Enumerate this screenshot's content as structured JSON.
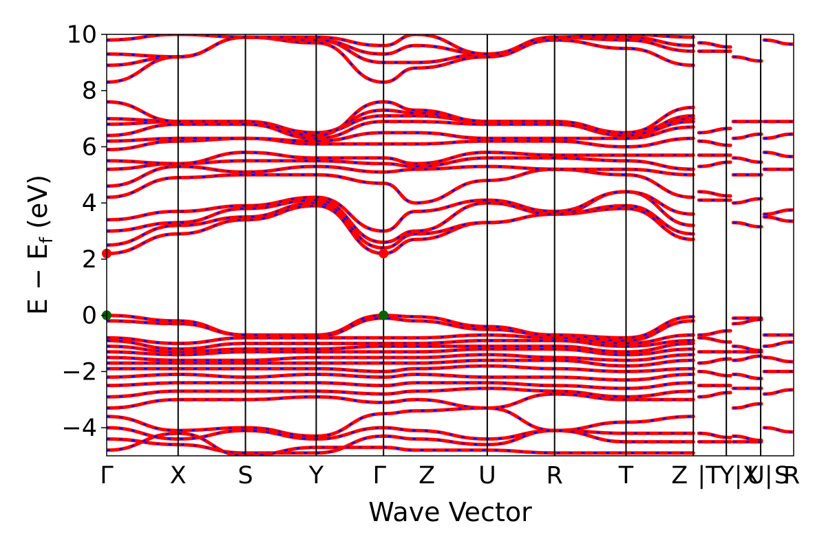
{
  "chart_data": {
    "type": "line",
    "title": "",
    "xlabel": "Wave Vector",
    "ylabel": "E − E_f (eV)",
    "ylabel_parts": {
      "main": "E − E",
      "sub": "f",
      "unit": " (eV)"
    },
    "ylim": [
      -5,
      10
    ],
    "yticks": [
      -4,
      -2,
      0,
      2,
      4,
      6,
      8,
      10
    ],
    "ytick_labels": [
      "−4",
      "−2",
      "0",
      "2",
      "4",
      "6",
      "8",
      "10"
    ],
    "xlim": [
      0,
      10
    ],
    "kpoints": [
      {
        "label": "Γ",
        "x": 0.0
      },
      {
        "label": "X",
        "x": 1.04
      },
      {
        "label": "S",
        "x": 2.02
      },
      {
        "label": "Y",
        "x": 3.05
      },
      {
        "label": "Γ",
        "x": 4.03
      },
      {
        "label": "Z",
        "x": 4.5
      },
      {
        "label": "U",
        "x": 5.54
      },
      {
        "label": "R",
        "x": 6.52
      },
      {
        "label": "T",
        "x": 7.56
      },
      {
        "label": "Z",
        "x": 8.54
      },
      {
        "label": "|T",
        "x": 8.6
      },
      {
        "label": "Y|X",
        "x": 9.1
      },
      {
        "label": "U|",
        "x": 9.55
      },
      {
        "label": "S",
        "x": 9.85
      },
      {
        "label": "R",
        "x": 10.0
      }
    ],
    "grid": false,
    "legend": "none",
    "colors": {
      "band_main": "#ff0000",
      "band_dash": "#0000ff",
      "vbm": "#006400",
      "cbm": "#ff0000"
    },
    "markers": [
      {
        "type": "VBM",
        "x": 0.0,
        "y": 0.0
      },
      {
        "type": "VBM",
        "x": 4.03,
        "y": 0.0
      },
      {
        "type": "CBM",
        "x": 0.0,
        "y": 2.2
      },
      {
        "type": "CBM",
        "x": 4.03,
        "y": 2.2
      }
    ],
    "conduction_bands": [
      [
        2.2,
        2.9,
        3.4,
        3.9,
        2.2,
        2.7,
        3.3,
        3.6,
        3.8,
        2.7
      ],
      [
        2.5,
        3.2,
        3.5,
        4.0,
        2.4,
        2.9,
        3.3,
        3.6,
        3.9,
        2.9
      ],
      [
        3.0,
        3.3,
        3.8,
        4.1,
        2.6,
        3.0,
        4.0,
        3.6,
        4.4,
        3.2
      ],
      [
        3.4,
        3.7,
        3.9,
        4.2,
        3.0,
        3.7,
        4.1,
        3.7,
        4.4,
        3.6
      ],
      [
        4.2,
        4.9,
        5.0,
        5.0,
        4.7,
        4.0,
        4.8,
        5.2,
        5.0,
        4.2
      ],
      [
        4.6,
        5.3,
        5.1,
        5.3,
        5.1,
        5.2,
        5.3,
        5.2,
        5.2,
        5.0
      ],
      [
        5.2,
        5.4,
        5.5,
        5.5,
        5.4,
        5.3,
        5.6,
        5.6,
        5.5,
        5.2
      ],
      [
        5.5,
        5.4,
        5.8,
        5.6,
        5.6,
        5.4,
        5.8,
        5.7,
        5.7,
        5.7
      ],
      [
        5.9,
        6.2,
        6.3,
        6.1,
        6.1,
        6.1,
        6.2,
        6.2,
        6.0,
        6.3
      ],
      [
        6.2,
        6.3,
        6.3,
        6.2,
        6.5,
        6.5,
        6.3,
        6.3,
        6.3,
        6.7
      ],
      [
        6.4,
        6.8,
        6.8,
        6.3,
        6.9,
        6.9,
        6.8,
        6.8,
        6.4,
        6.9
      ],
      [
        6.8,
        6.9,
        6.9,
        6.5,
        7.1,
        7.1,
        6.9,
        6.9,
        6.5,
        7.0
      ],
      [
        7.0,
        6.9,
        6.9,
        6.5,
        7.3,
        7.2,
        6.9,
        6.9,
        6.4,
        7.1
      ],
      [
        7.6,
        6.9,
        6.9,
        6.4,
        7.6,
        7.3,
        6.9,
        6.9,
        6.5,
        7.4
      ],
      [
        8.3,
        9.2,
        9.9,
        9.7,
        8.3,
        8.8,
        9.2,
        9.8,
        9.5,
        8.9
      ],
      [
        8.9,
        9.2,
        9.9,
        9.8,
        9.0,
        9.0,
        9.3,
        9.9,
        9.8,
        9.4
      ],
      [
        9.3,
        9.2,
        9.9,
        9.8,
        9.3,
        9.6,
        9.3,
        9.9,
        9.9,
        9.6
      ],
      [
        9.8,
        10.0,
        9.9,
        9.9,
        9.6,
        10.0,
        9.3,
        9.9,
        10.0,
        9.9
      ]
    ],
    "valence_bands": [
      [
        0.0,
        -0.2,
        -0.7,
        -0.7,
        0.0,
        -0.05,
        -0.4,
        -0.7,
        -0.8,
        -0.05
      ],
      [
        -0.2,
        -0.3,
        -0.7,
        -0.75,
        -0.1,
        -0.2,
        -0.5,
        -0.7,
        -0.9,
        -0.2
      ],
      [
        -0.8,
        -1.0,
        -0.8,
        -0.8,
        -0.8,
        -0.8,
        -0.7,
        -0.8,
        -1.0,
        -0.7
      ],
      [
        -0.9,
        -1.2,
        -1.0,
        -1.0,
        -1.0,
        -1.0,
        -0.9,
        -0.9,
        -1.1,
        -0.9
      ],
      [
        -1.1,
        -1.3,
        -1.2,
        -1.2,
        -1.1,
        -1.1,
        -1.1,
        -1.1,
        -1.3,
        -1.0
      ],
      [
        -1.3,
        -1.4,
        -1.3,
        -1.3,
        -1.3,
        -1.3,
        -1.2,
        -1.2,
        -1.4,
        -1.2
      ],
      [
        -1.5,
        -1.6,
        -1.6,
        -1.5,
        -1.5,
        -1.5,
        -1.4,
        -1.5,
        -1.6,
        -1.4
      ],
      [
        -1.7,
        -1.7,
        -1.7,
        -1.7,
        -1.7,
        -1.7,
        -1.6,
        -1.6,
        -1.8,
        -1.6
      ],
      [
        -1.9,
        -1.9,
        -1.9,
        -1.9,
        -2.0,
        -1.9,
        -1.8,
        -1.9,
        -2.0,
        -1.9
      ],
      [
        -2.2,
        -2.1,
        -2.2,
        -2.1,
        -2.2,
        -2.1,
        -2.2,
        -2.2,
        -2.3,
        -2.1
      ],
      [
        -2.5,
        -2.4,
        -2.4,
        -2.4,
        -2.5,
        -2.4,
        -2.4,
        -2.5,
        -2.6,
        -2.4
      ],
      [
        -2.9,
        -2.7,
        -2.7,
        -2.7,
        -2.8,
        -2.7,
        -2.6,
        -2.7,
        -2.9,
        -2.7
      ],
      [
        -3.3,
        -3.0,
        -3.0,
        -2.9,
        -3.1,
        -3.0,
        -3.3,
        -2.8,
        -3.0,
        -3.0
      ],
      [
        -3.6,
        -4.1,
        -4.0,
        -4.3,
        -3.5,
        -3.4,
        -3.3,
        -4.1,
        -3.8,
        -3.6
      ],
      [
        -4.0,
        -4.4,
        -4.1,
        -4.4,
        -4.0,
        -4.1,
        -4.4,
        -4.1,
        -4.2,
        -4.2
      ],
      [
        -4.4,
        -4.6,
        -4.9,
        -4.9,
        -4.3,
        -4.4,
        -4.6,
        -4.1,
        -4.5,
        -4.5
      ],
      [
        -4.8,
        -4.2,
        -5.0,
        -4.7,
        -4.7,
        -4.8,
        -4.8,
        -4.9,
        -4.9,
        -4.9
      ]
    ],
    "short_segments": [
      {
        "x": [
          8.6,
          9.1
        ],
        "ys": [
          9.7,
          9.4,
          6.5,
          6.2,
          5.7,
          5.3,
          4.4,
          4.1,
          -0.7,
          -0.8,
          -1.3,
          -1.7,
          -2.0,
          -2.5,
          -2.9,
          -4.2,
          -4.5
        ]
      },
      {
        "x": [
          9.1,
          9.55
        ],
        "ys": [
          9.2,
          6.9,
          6.3,
          5.6,
          5.0,
          4.0,
          3.3,
          -0.1,
          -0.3,
          -1.1,
          -1.3,
          -1.6,
          -2.1,
          -2.6,
          -3.3,
          -4.3,
          -4.5
        ]
      },
      {
        "x": [
          9.55,
          10.0
        ],
        "ys": [
          9.8,
          6.9,
          6.3,
          5.8,
          5.2,
          3.6,
          3.5,
          -0.7,
          -1.1,
          -1.5,
          -2.0,
          -2.8,
          -4.0
        ]
      }
    ]
  }
}
